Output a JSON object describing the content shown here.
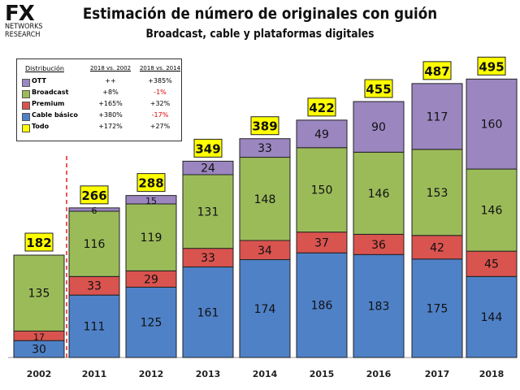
{
  "logo": {
    "mark": "FX",
    "line1": "NETWORKS",
    "line2": "RESEARCH"
  },
  "colors": {
    "ott": "#9b86c0",
    "broadcast": "#9bbb59",
    "premium": "#d9534f",
    "cable": "#4f81c7",
    "todo": "#ffff00",
    "divider": "#e02020"
  },
  "chart_data": {
    "type": "bar",
    "stacked": true,
    "title": "Estimación de número de originales con guión",
    "subtitle": "Broadcast, cable y plataformas digitales",
    "categories": [
      "2002",
      "2011",
      "2012",
      "2013",
      "2014",
      "2015",
      "2016",
      "2017",
      "2018"
    ],
    "series": [
      {
        "name": "Cable básico",
        "values": [
          30,
          111,
          125,
          161,
          174,
          186,
          183,
          175,
          144
        ]
      },
      {
        "name": "Premium",
        "values": [
          17,
          33,
          29,
          33,
          34,
          37,
          36,
          42,
          45
        ]
      },
      {
        "name": "Broadcast",
        "values": [
          135,
          116,
          119,
          131,
          148,
          150,
          146,
          153,
          146
        ]
      },
      {
        "name": "OTT",
        "values": [
          0,
          6,
          15,
          24,
          33,
          49,
          90,
          117,
          160
        ]
      }
    ],
    "totals": [
      182,
      266,
      288,
      349,
      389,
      422,
      455,
      487,
      495
    ],
    "ylim": [
      0,
      520
    ],
    "grid": false,
    "legend": {
      "title": "Distribución",
      "col1": "2018 vs. 2002",
      "col2": "2018 vs. 2014",
      "rows": [
        {
          "name": "OTT",
          "swatch": "ott",
          "v1": "++",
          "v2": "+385%",
          "neg2": false
        },
        {
          "name": "Broadcast",
          "swatch": "broadcast",
          "v1": "+8%",
          "v2": "-1%",
          "neg2": true
        },
        {
          "name": "Premium",
          "swatch": "premium",
          "v1": "+165%",
          "v2": "+32%",
          "neg2": false
        },
        {
          "name": "Cable básico",
          "swatch": "cable",
          "v1": "+380%",
          "v2": "-17%",
          "neg2": true
        },
        {
          "name": "Todo",
          "swatch": "todo",
          "v1": "+172%",
          "v2": "+27%",
          "neg2": false
        }
      ]
    }
  }
}
